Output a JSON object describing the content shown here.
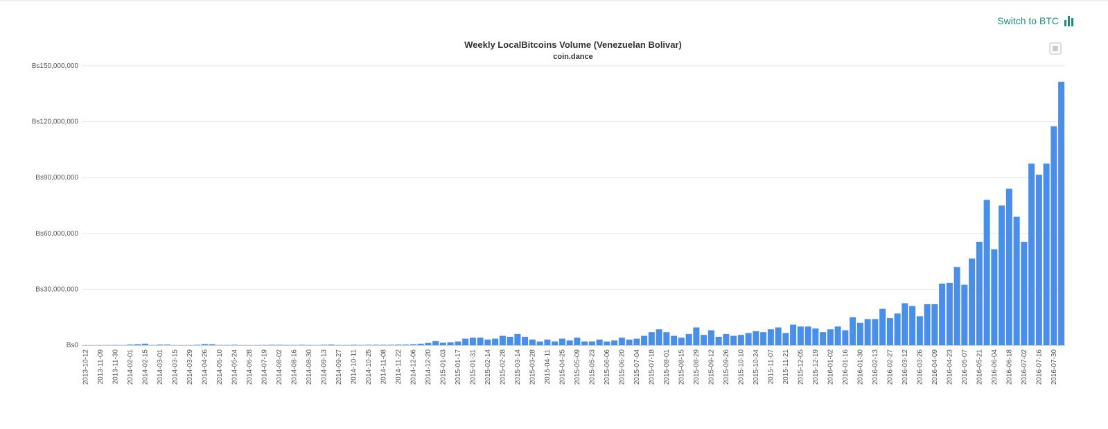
{
  "switch_label": "Switch to BTC",
  "chart_data": {
    "type": "bar",
    "title": "Weekly LocalBitcoins Volume (Venezuelan Bolivar)",
    "subtitle": "coin.dance",
    "color": "#4a8fe7",
    "grid": true,
    "ylim": [
      0,
      150000000
    ],
    "yticks": [
      {
        "value": 0,
        "label": "Bs0"
      },
      {
        "value": 30000000,
        "label": "Bs30,000,000"
      },
      {
        "value": 60000000,
        "label": "Bs60,000,000"
      },
      {
        "value": 90000000,
        "label": "Bs90,000,000"
      },
      {
        "value": 120000000,
        "label": "Bs120,000,000"
      },
      {
        "value": 150000000,
        "label": "Bs150,000,000"
      }
    ],
    "categories": [
      "2013-10-12",
      null,
      "2013-11-09",
      null,
      "2013-11-30",
      null,
      "2014-02-01",
      null,
      "2014-02-15",
      null,
      "2014-03-01",
      null,
      "2014-03-15",
      null,
      "2014-03-29",
      null,
      "2014-04-26",
      null,
      "2014-05-10",
      null,
      "2014-05-24",
      null,
      "2014-06-28",
      null,
      "2014-07-19",
      null,
      "2014-08-02",
      null,
      "2014-08-16",
      null,
      "2014-08-30",
      null,
      "2014-09-13",
      null,
      "2014-09-27",
      null,
      "2014-10-11",
      null,
      "2014-10-25",
      null,
      "2014-11-08",
      null,
      "2014-11-22",
      null,
      "2014-12-06",
      null,
      "2014-12-20",
      null,
      "2015-01-03",
      null,
      "2015-01-17",
      null,
      "2015-01-31",
      null,
      "2015-02-14",
      null,
      "2015-02-28",
      null,
      "2015-03-14",
      null,
      "2015-03-28",
      null,
      "2015-04-11",
      null,
      "2015-04-25",
      null,
      "2015-05-09",
      null,
      "2015-05-23",
      null,
      "2015-06-06",
      null,
      "2015-06-20",
      null,
      "2015-07-04",
      null,
      "2015-07-18",
      null,
      "2015-08-01",
      null,
      "2015-08-15",
      null,
      "2015-08-29",
      null,
      "2015-09-12",
      null,
      "2015-09-26",
      null,
      "2015-10-10",
      null,
      "2015-10-24",
      null,
      "2015-11-07",
      null,
      "2015-11-21",
      null,
      "2015-12-05",
      null,
      "2015-12-19",
      null,
      "2016-01-02",
      null,
      "2016-01-16",
      null,
      "2016-01-30",
      null,
      "2016-02-13",
      null,
      "2016-02-27",
      null,
      "2016-03-12",
      null,
      "2016-03-26",
      null,
      "2016-04-09",
      null,
      "2016-04-23",
      null,
      "2016-05-07",
      null,
      "2016-05-21",
      null,
      "2016-06-04",
      null,
      "2016-06-18",
      null,
      "2016-07-02",
      null,
      "2016-07-16",
      null,
      "2016-07-30",
      null
    ],
    "values": [
      0,
      0,
      50000,
      50000,
      100000,
      50000,
      300000,
      500000,
      800000,
      100000,
      300000,
      300000,
      50000,
      50000,
      50000,
      200000,
      600000,
      500000,
      100000,
      100000,
      200000,
      50000,
      50000,
      50000,
      100000,
      200000,
      200000,
      100000,
      100000,
      200000,
      100000,
      50000,
      200000,
      300000,
      100000,
      100000,
      200000,
      100000,
      200000,
      200000,
      200000,
      200000,
      300000,
      300000,
      500000,
      800000,
      1200000,
      2200000,
      1300000,
      1500000,
      2000000,
      3500000,
      4000000,
      4000000,
      3000000,
      3500000,
      5000000,
      4500000,
      6000000,
      4500000,
      3000000,
      2000000,
      3000000,
      2000000,
      3500000,
      2500000,
      4000000,
      2000000,
      2000000,
      3000000,
      2000000,
      2500000,
      4000000,
      3000000,
      3500000,
      5000000,
      7000000,
      8500000,
      7000000,
      5000000,
      4000000,
      6000000,
      9500000,
      5500000,
      8000000,
      4500000,
      6000000,
      5000000,
      5500000,
      6500000,
      7500000,
      7000000,
      8500000,
      9500000,
      6500000,
      11000000,
      10000000,
      10000000,
      9000000,
      7000000,
      8500000,
      10000000,
      8000000,
      15000000,
      12000000,
      14000000,
      14000000,
      19500000,
      14500000,
      17000000,
      22500000,
      21000000,
      15500000,
      22000000,
      22000000,
      33000000,
      33500000,
      42000000,
      32500000,
      46500000,
      55500000,
      78000000,
      51500000,
      75000000,
      84000000,
      69000000,
      55500000,
      97500000,
      91500000,
      97500000,
      117500000,
      141500000
    ]
  }
}
